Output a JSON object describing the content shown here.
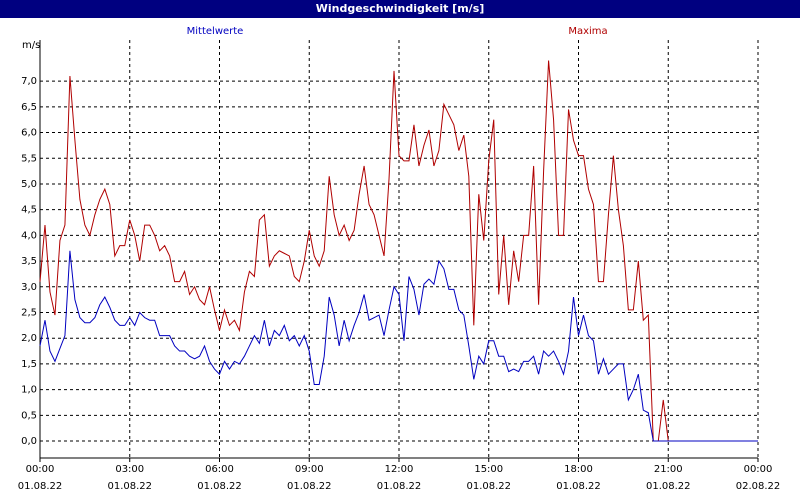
{
  "chart_data": {
    "type": "line",
    "title": "Windgeschwindigkeit [m/s]",
    "y_label": "m/s",
    "x": [
      0,
      10,
      20,
      30,
      40,
      50,
      60,
      70,
      80,
      90,
      100,
      110,
      120,
      130,
      140,
      150,
      160,
      170,
      180,
      190,
      200,
      210,
      220,
      230,
      240,
      250,
      260,
      270,
      280,
      290,
      300,
      310,
      320,
      330,
      340,
      350,
      360,
      370,
      380,
      390,
      400,
      410,
      420,
      430,
      440,
      450,
      460,
      470,
      480,
      490,
      500,
      510,
      520,
      530,
      540,
      550,
      560,
      570,
      580,
      590,
      600,
      610,
      620,
      630,
      640,
      650,
      660,
      670,
      680,
      690,
      700,
      710,
      720,
      730,
      740,
      750,
      760,
      770,
      780,
      790,
      800,
      810,
      820,
      830,
      840,
      850,
      860,
      870,
      880,
      890,
      900,
      910,
      920,
      930,
      940,
      950,
      960,
      970,
      980,
      990,
      1000,
      1010,
      1020,
      1030,
      1040,
      1050,
      1060,
      1070,
      1080,
      1090,
      1100,
      1110,
      1120,
      1130,
      1140,
      1150,
      1160,
      1170,
      1180,
      1190,
      1200,
      1210,
      1220,
      1230,
      1240,
      1250,
      1260,
      1440
    ],
    "series": [
      {
        "name": "Mittelwerte",
        "color": "#0000c0",
        "values": [
          1.85,
          2.35,
          1.75,
          1.55,
          1.8,
          2.05,
          3.7,
          2.75,
          2.4,
          2.3,
          2.3,
          2.4,
          2.65,
          2.8,
          2.6,
          2.35,
          2.25,
          2.25,
          2.4,
          2.25,
          2.5,
          2.4,
          2.35,
          2.35,
          2.05,
          2.05,
          2.05,
          1.85,
          1.75,
          1.75,
          1.65,
          1.6,
          1.65,
          1.85,
          1.55,
          1.4,
          1.3,
          1.55,
          1.4,
          1.55,
          1.5,
          1.65,
          1.85,
          2.05,
          1.9,
          2.35,
          1.85,
          2.15,
          2.05,
          2.25,
          1.95,
          2.05,
          1.85,
          2.05,
          1.75,
          1.1,
          1.1,
          1.65,
          2.8,
          2.45,
          1.85,
          2.35,
          1.95,
          2.25,
          2.5,
          2.85,
          2.35,
          2.4,
          2.45,
          2.05,
          2.55,
          3.0,
          2.85,
          1.95,
          3.2,
          2.95,
          2.45,
          3.05,
          3.15,
          3.05,
          3.5,
          3.35,
          2.95,
          2.95,
          2.55,
          2.45,
          1.85,
          1.2,
          1.65,
          1.5,
          1.95,
          1.95,
          1.65,
          1.65,
          1.35,
          1.4,
          1.35,
          1.55,
          1.55,
          1.65,
          1.3,
          1.75,
          1.65,
          1.75,
          1.55,
          1.3,
          1.75,
          2.8,
          2.05,
          2.45,
          2.05,
          1.95,
          1.3,
          1.6,
          1.3,
          1.4,
          1.5,
          1.5,
          0.8,
          1.0,
          1.3,
          0.6,
          0.55,
          0,
          0,
          0,
          0,
          0
        ]
      },
      {
        "name": "Maxima",
        "color": "#b00000",
        "values": [
          3.1,
          4.2,
          2.9,
          2.45,
          3.9,
          4.2,
          7.1,
          5.85,
          4.7,
          4.2,
          4.0,
          4.4,
          4.7,
          4.9,
          4.6,
          3.6,
          3.8,
          3.8,
          4.3,
          4.0,
          3.5,
          4.2,
          4.2,
          4.0,
          3.7,
          3.8,
          3.6,
          3.1,
          3.1,
          3.3,
          2.85,
          3.0,
          2.75,
          2.65,
          3.0,
          2.55,
          2.15,
          2.55,
          2.25,
          2.35,
          2.15,
          2.9,
          3.3,
          3.2,
          4.3,
          4.4,
          3.4,
          3.6,
          3.7,
          3.65,
          3.6,
          3.2,
          3.1,
          3.5,
          4.1,
          3.6,
          3.4,
          3.7,
          5.15,
          4.4,
          4.0,
          4.2,
          3.9,
          4.1,
          4.8,
          5.35,
          4.6,
          4.4,
          4.0,
          3.6,
          5.1,
          7.2,
          5.55,
          5.45,
          5.45,
          6.15,
          5.35,
          5.75,
          6.05,
          5.35,
          5.65,
          6.55,
          6.35,
          6.15,
          5.65,
          5.95,
          5.15,
          2.25,
          4.8,
          3.9,
          5.45,
          6.25,
          2.85,
          4.0,
          2.65,
          3.7,
          3.1,
          4.0,
          4.0,
          5.35,
          2.65,
          5.25,
          7.4,
          6.25,
          4.0,
          4.0,
          6.45,
          5.85,
          5.55,
          5.55,
          4.9,
          4.6,
          3.1,
          3.1,
          4.4,
          5.55,
          4.5,
          3.8,
          2.55,
          2.55,
          3.5,
          2.35,
          2.45,
          0,
          0,
          0.8,
          0,
          0
        ]
      }
    ],
    "xlim": [
      0,
      1440
    ],
    "xticks": [
      {
        "value": 0,
        "label": "00:00\n01.08.22"
      },
      {
        "value": 180,
        "label": "03:00\n01.08.22"
      },
      {
        "value": 360,
        "label": "06:00\n01.08.22"
      },
      {
        "value": 540,
        "label": "09:00\n01.08.22"
      },
      {
        "value": 720,
        "label": "12:00\n01.08.22"
      },
      {
        "value": 900,
        "label": "15:00\n01.08.22"
      },
      {
        "value": 1080,
        "label": "18:00\n01.08.22"
      },
      {
        "value": 1260,
        "label": "21:00\n01.08.22"
      },
      {
        "value": 1440,
        "label": "00:00\n02.08.22"
      }
    ],
    "ylim": [
      -0.33,
      7.8
    ],
    "yticks": [
      {
        "value": 0,
        "label": "0,0"
      },
      {
        "value": 0.5,
        "label": "0,5"
      },
      {
        "value": 1,
        "label": "1,0"
      },
      {
        "value": 1.5,
        "label": "1,5"
      },
      {
        "value": 2,
        "label": "2,0"
      },
      {
        "value": 2.5,
        "label": "2,5"
      },
      {
        "value": 3,
        "label": "3,0"
      },
      {
        "value": 3.5,
        "label": "3,5"
      },
      {
        "value": 4,
        "label": "4,0"
      },
      {
        "value": 4.5,
        "label": "4,5"
      },
      {
        "value": 5,
        "label": "5,0"
      },
      {
        "value": 5.5,
        "label": "5,5"
      },
      {
        "value": 6,
        "label": "6,0"
      },
      {
        "value": 6.5,
        "label": "6,5"
      },
      {
        "value": 7,
        "label": "7,0"
      }
    ],
    "grid": true
  }
}
